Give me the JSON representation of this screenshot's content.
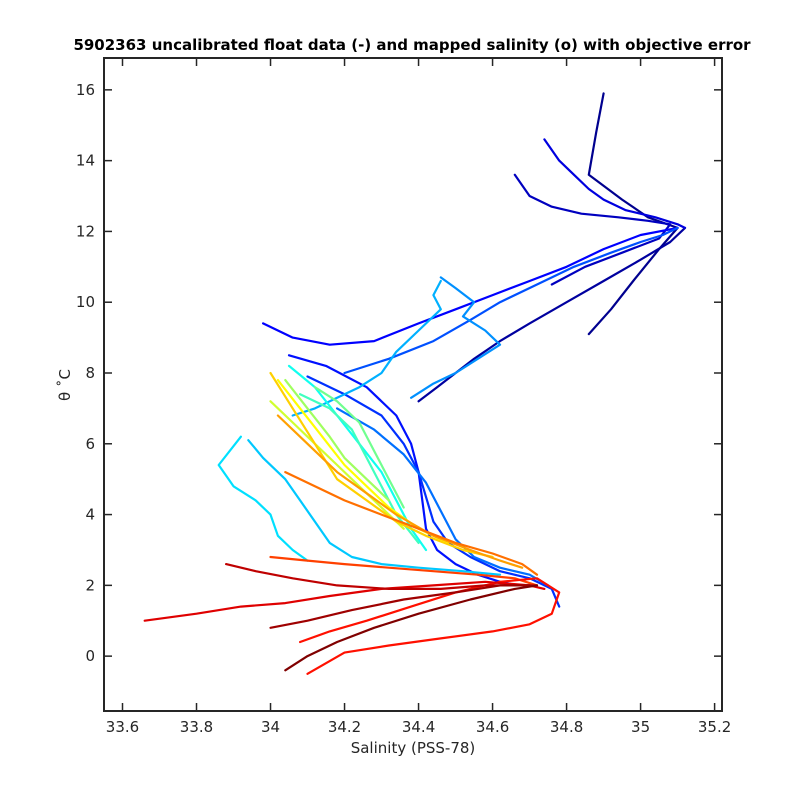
{
  "chart_data": {
    "type": "line",
    "title": "5902363 uncalibrated float data (-) and mapped salinity (o) with objective error",
    "xlabel": "Salinity (PSS-78)",
    "ylabel": "θ ˚C",
    "xlim": [
      33.55,
      35.22
    ],
    "ylim": [
      -1.55,
      16.9
    ],
    "xticks": [
      "33.6",
      "33.8",
      "34",
      "34.2",
      "34.4",
      "34.6",
      "34.8",
      "35",
      "35.2"
    ],
    "xtick_values": [
      33.6,
      33.8,
      34.0,
      34.2,
      34.4,
      34.6,
      34.8,
      35.0,
      35.2
    ],
    "yticks": [
      "0",
      "2",
      "4",
      "6",
      "8",
      "10",
      "12",
      "14",
      "16"
    ],
    "ytick_values": [
      0,
      2,
      4,
      6,
      8,
      10,
      12,
      14,
      16
    ],
    "colormap": "jet",
    "grid": false,
    "series": [
      {
        "color": "#00008f",
        "x": [
          34.9,
          34.88,
          34.86,
          34.95,
          35.02,
          35.1,
          35.05,
          34.98,
          34.92,
          34.86
        ],
        "y": [
          15.9,
          14.8,
          13.6,
          12.9,
          12.4,
          12.1,
          11.5,
          10.6,
          9.8,
          9.1
        ]
      },
      {
        "color": "#00009f",
        "x": [
          35.12,
          35.08,
          35.0,
          34.9,
          34.8,
          34.7,
          34.62,
          34.55,
          34.5,
          34.45,
          34.4
        ],
        "y": [
          12.1,
          11.7,
          11.2,
          10.6,
          10.0,
          9.4,
          8.9,
          8.4,
          8.0,
          7.6,
          7.2
        ]
      },
      {
        "color": "#0000bf",
        "x": [
          34.66,
          34.7,
          34.76,
          34.84,
          34.94,
          35.02,
          35.08,
          35.05,
          34.95,
          34.85,
          34.76
        ],
        "y": [
          13.6,
          13.0,
          12.7,
          12.5,
          12.4,
          12.3,
          12.2,
          11.8,
          11.4,
          11.0,
          10.5
        ]
      },
      {
        "color": "#0000df",
        "x": [
          34.74,
          34.78,
          34.82,
          34.86,
          34.9,
          34.96,
          35.04,
          35.1,
          35.12
        ],
        "y": [
          14.6,
          14.0,
          13.6,
          13.2,
          12.9,
          12.6,
          12.4,
          12.2,
          12.1
        ]
      },
      {
        "color": "#0000ff",
        "x": [
          33.98,
          34.06,
          34.16,
          34.28,
          34.4,
          34.5,
          34.6,
          34.7,
          34.8,
          34.9,
          35.0,
          35.1
        ],
        "y": [
          9.4,
          9.0,
          8.8,
          8.9,
          9.4,
          9.8,
          10.2,
          10.6,
          11.0,
          11.5,
          11.9,
          12.1
        ]
      },
      {
        "color": "#0010ff",
        "x": [
          34.05,
          34.15,
          34.26,
          34.34,
          34.38,
          34.4,
          34.41,
          34.42,
          34.45,
          34.5,
          34.56,
          34.62,
          34.67,
          34.7
        ],
        "y": [
          8.5,
          8.2,
          7.6,
          6.8,
          6.0,
          5.2,
          4.4,
          3.6,
          3.0,
          2.6,
          2.3,
          2.1,
          2.0,
          2.0
        ]
      },
      {
        "color": "#0030ff",
        "x": [
          34.1,
          34.2,
          34.3,
          34.36,
          34.4,
          34.42,
          34.44,
          34.48,
          34.54,
          34.62,
          34.7,
          34.76,
          34.78
        ],
        "y": [
          7.9,
          7.4,
          6.8,
          6.0,
          5.2,
          4.5,
          3.8,
          3.2,
          2.8,
          2.4,
          2.2,
          1.9,
          1.4
        ]
      },
      {
        "color": "#0050ff",
        "x": [
          34.2,
          34.32,
          34.44,
          34.54,
          34.62,
          34.72,
          34.82,
          34.92,
          35.0,
          35.06,
          35.1
        ],
        "y": [
          8.0,
          8.4,
          8.9,
          9.5,
          10.0,
          10.5,
          11.0,
          11.4,
          11.7,
          11.9,
          12.1
        ]
      },
      {
        "color": "#0070ff",
        "x": [
          34.18,
          34.28,
          34.36,
          34.42,
          34.46,
          34.5,
          34.55,
          34.62,
          34.7,
          34.75
        ],
        "y": [
          7.0,
          6.4,
          5.7,
          4.9,
          4.1,
          3.3,
          2.8,
          2.5,
          2.3,
          2.0
        ]
      },
      {
        "color": "#0090ff",
        "x": [
          34.46,
          34.5,
          34.55,
          34.52,
          34.58,
          34.62,
          34.56,
          34.5,
          34.44,
          34.38
        ],
        "y": [
          10.7,
          10.4,
          10.0,
          9.6,
          9.2,
          8.8,
          8.4,
          8.0,
          7.7,
          7.3
        ]
      },
      {
        "color": "#00b0ff",
        "x": [
          34.46,
          34.44,
          34.46,
          34.4,
          34.34,
          34.3,
          34.24,
          34.18,
          34.12,
          34.06
        ],
        "y": [
          10.6,
          10.2,
          9.8,
          9.2,
          8.6,
          8.0,
          7.6,
          7.3,
          7.0,
          6.8
        ]
      },
      {
        "color": "#00c8ff",
        "x": [
          33.94,
          33.98,
          34.04,
          34.08,
          34.12,
          34.16,
          34.22,
          34.3,
          34.4,
          34.52,
          34.62
        ],
        "y": [
          6.1,
          5.6,
          5.0,
          4.4,
          3.8,
          3.2,
          2.8,
          2.6,
          2.5,
          2.4,
          2.3
        ]
      },
      {
        "color": "#00e0ff",
        "x": [
          33.92,
          33.86,
          33.9,
          33.96,
          34.0,
          34.02,
          34.06,
          34.1
        ],
        "y": [
          6.2,
          5.4,
          4.8,
          4.4,
          4.0,
          3.4,
          3.0,
          2.7
        ]
      },
      {
        "color": "#10ffef",
        "x": [
          34.05,
          34.12,
          34.18,
          34.24,
          34.3,
          34.34,
          34.38,
          34.42
        ],
        "y": [
          8.2,
          7.6,
          6.8,
          6.0,
          5.2,
          4.4,
          3.6,
          3.0
        ]
      },
      {
        "color": "#40ffbf",
        "x": [
          34.08,
          34.16,
          34.22,
          34.26,
          34.3,
          34.34,
          34.4
        ],
        "y": [
          7.4,
          7.0,
          6.4,
          5.6,
          4.8,
          4.0,
          3.2
        ]
      },
      {
        "color": "#70ff8f",
        "x": [
          34.12,
          34.18,
          34.24,
          34.28,
          34.32,
          34.36
        ],
        "y": [
          7.6,
          7.2,
          6.6,
          5.8,
          5.0,
          4.2
        ]
      },
      {
        "color": "#a0ff5f",
        "x": [
          34.04,
          34.1,
          34.16,
          34.2,
          34.26,
          34.32
        ],
        "y": [
          7.8,
          7.0,
          6.2,
          5.6,
          5.0,
          4.4
        ]
      },
      {
        "color": "#d0ff2f",
        "x": [
          34.0,
          34.06,
          34.12,
          34.18,
          34.24,
          34.3,
          34.36
        ],
        "y": [
          7.2,
          6.6,
          6.0,
          5.4,
          4.8,
          4.2,
          3.6
        ]
      },
      {
        "color": "#ffff00",
        "x": [
          34.02,
          34.08,
          34.14,
          34.2,
          34.26,
          34.32,
          34.4,
          34.48
        ],
        "y": [
          7.8,
          7.0,
          6.2,
          5.4,
          4.8,
          4.2,
          3.6,
          3.2
        ]
      },
      {
        "color": "#ffd000",
        "x": [
          34.0,
          34.06,
          34.12,
          34.18,
          34.26,
          34.34,
          34.42,
          34.52,
          34.6
        ],
        "y": [
          8.0,
          7.0,
          6.0,
          5.0,
          4.4,
          3.8,
          3.4,
          3.0,
          2.8
        ]
      },
      {
        "color": "#ffa000",
        "x": [
          34.02,
          34.1,
          34.18,
          34.26,
          34.34,
          34.44,
          34.54,
          34.62,
          34.68
        ],
        "y": [
          6.8,
          6.0,
          5.2,
          4.6,
          4.0,
          3.4,
          3.0,
          2.7,
          2.5
        ]
      },
      {
        "color": "#ff7000",
        "x": [
          34.04,
          34.12,
          34.2,
          34.3,
          34.4,
          34.5,
          34.6,
          34.68,
          34.72
        ],
        "y": [
          5.2,
          4.8,
          4.4,
          4.0,
          3.6,
          3.2,
          2.9,
          2.6,
          2.3
        ]
      },
      {
        "color": "#ff4000",
        "x": [
          34.0,
          34.1,
          34.2,
          34.32,
          34.44,
          34.56,
          34.66,
          34.72
        ],
        "y": [
          2.8,
          2.7,
          2.6,
          2.5,
          2.4,
          2.3,
          2.2,
          2.0
        ]
      },
      {
        "color": "#ff1000",
        "x": [
          34.08,
          34.16,
          34.26,
          34.38,
          34.5,
          34.62,
          34.72,
          34.78,
          34.76,
          34.7,
          34.6,
          34.46,
          34.32,
          34.2,
          34.1
        ],
        "y": [
          0.4,
          0.7,
          1.0,
          1.4,
          1.8,
          2.1,
          2.2,
          1.8,
          1.2,
          0.9,
          0.7,
          0.5,
          0.3,
          0.1,
          -0.5
        ]
      },
      {
        "color": "#df0000",
        "x": [
          33.66,
          33.8,
          33.92,
          34.04,
          34.16,
          34.3,
          34.44,
          34.58,
          34.7,
          34.74
        ],
        "y": [
          1.0,
          1.2,
          1.4,
          1.5,
          1.7,
          1.9,
          2.0,
          2.1,
          2.0,
          1.9
        ]
      },
      {
        "color": "#bf0000",
        "x": [
          33.88,
          33.96,
          34.06,
          34.18,
          34.32,
          34.46,
          34.58,
          34.68,
          34.72
        ],
        "y": [
          2.6,
          2.4,
          2.2,
          2.0,
          1.9,
          1.9,
          2.0,
          2.0,
          2.0
        ]
      },
      {
        "color": "#9f0000",
        "x": [
          34.0,
          34.1,
          34.22,
          34.36,
          34.5,
          34.62,
          34.7
        ],
        "y": [
          0.8,
          1.0,
          1.3,
          1.6,
          1.8,
          2.0,
          2.0
        ]
      },
      {
        "color": "#800000",
        "x": [
          34.04,
          34.1,
          34.18,
          34.28,
          34.4,
          34.54,
          34.66,
          34.72
        ],
        "y": [
          -0.4,
          0.0,
          0.4,
          0.8,
          1.2,
          1.6,
          1.9,
          2.0
        ]
      }
    ]
  }
}
